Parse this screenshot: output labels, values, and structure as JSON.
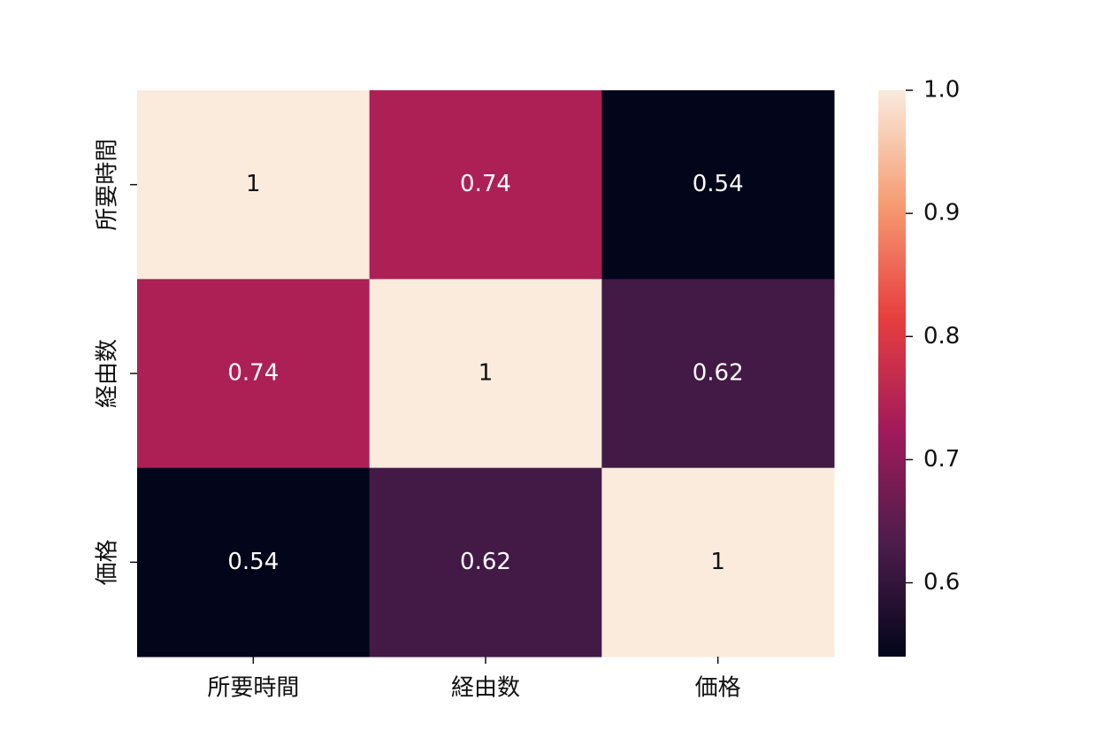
{
  "chart_data": {
    "type": "heatmap",
    "x_categories": [
      "所要時間",
      "経由数",
      "価格"
    ],
    "y_categories": [
      "所要時間",
      "経由数",
      "価格"
    ],
    "values": [
      [
        1,
        0.74,
        0.54
      ],
      [
        0.74,
        1,
        0.62
      ],
      [
        0.54,
        0.62,
        1
      ]
    ],
    "colormap": "rocket",
    "zlim": [
      0.54,
      1
    ],
    "zticks": [
      0.6,
      0.7,
      0.8,
      0.9,
      {
        "value": 1,
        "label": "1.0"
      }
    ]
  }
}
